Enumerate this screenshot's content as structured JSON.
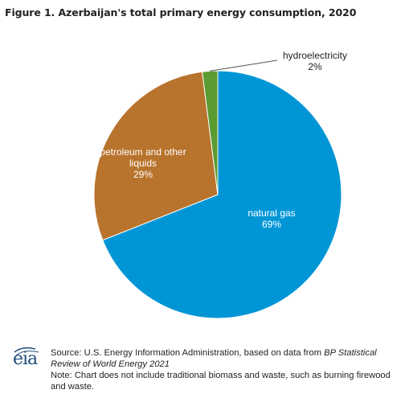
{
  "title": "Figure 1. Azerbaijan's total primary energy consumption, 2020",
  "chart_data": {
    "type": "pie",
    "slices": [
      {
        "name": "natural gas",
        "value": 69,
        "label": "69%",
        "color": "#0096d6"
      },
      {
        "name": "petroleum and other liquids",
        "value": 29,
        "label": "29%",
        "color": "#b8732c"
      },
      {
        "name": "hydroelectricity",
        "value": 2,
        "label": "2%",
        "color": "#5a9b32"
      }
    ]
  },
  "footer": {
    "source_prefix": "Source: U.S. Energy Information Administration, based on data from ",
    "source_italic": "BP Statistical Review of World Energy 2021",
    "note": "Note: Chart does not include traditional biomass and waste, such as burning firewood and waste."
  },
  "logo": {
    "text": "eia"
  }
}
